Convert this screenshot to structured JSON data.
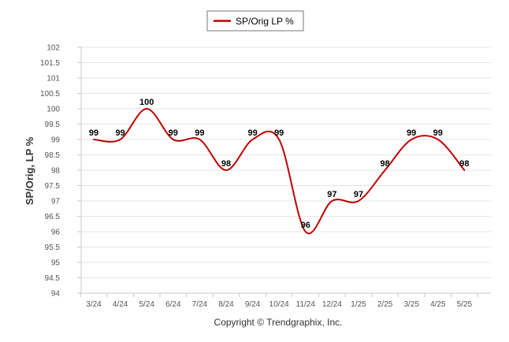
{
  "chart_data": {
    "type": "line",
    "categories": [
      "3/24",
      "4/24",
      "5/24",
      "6/24",
      "7/24",
      "8/24",
      "9/24",
      "10/24",
      "11/24",
      "12/24",
      "1/25",
      "2/25",
      "3/25",
      "4/25",
      "5/25"
    ],
    "series": [
      {
        "name": "SP/Orig LP %",
        "values": [
          99.0,
          99.0,
          100.0,
          99.0,
          99.0,
          98.0,
          99.0,
          99.0,
          96.0,
          97.0,
          97.0,
          98.0,
          99.0,
          99.0,
          98.0
        ],
        "data_labels": [
          "99",
          "99",
          "100",
          "99",
          "99",
          "98",
          "99",
          "99",
          "96",
          "97",
          "97",
          "98",
          "99",
          "99",
          "98"
        ],
        "color": "#c00000"
      }
    ],
    "title": "",
    "xlabel": "",
    "ylabel": "SP/Orig, LP %",
    "ylim": [
      94,
      102
    ],
    "yticks": [
      "94",
      "94.5",
      "95",
      "95.5",
      "96",
      "96.5",
      "97",
      "97.5",
      "98",
      "98.5",
      "99",
      "99.5",
      "100",
      "100.5",
      "101",
      "101.5",
      "102"
    ],
    "grid": true,
    "legend_position": "top-center"
  },
  "footer": {
    "copyright": "Copyright © Trendgraphix, Inc."
  },
  "colors": {
    "series_line": "#c00000",
    "grid": "#e6e6e6",
    "axis": "#c8c8c8"
  }
}
